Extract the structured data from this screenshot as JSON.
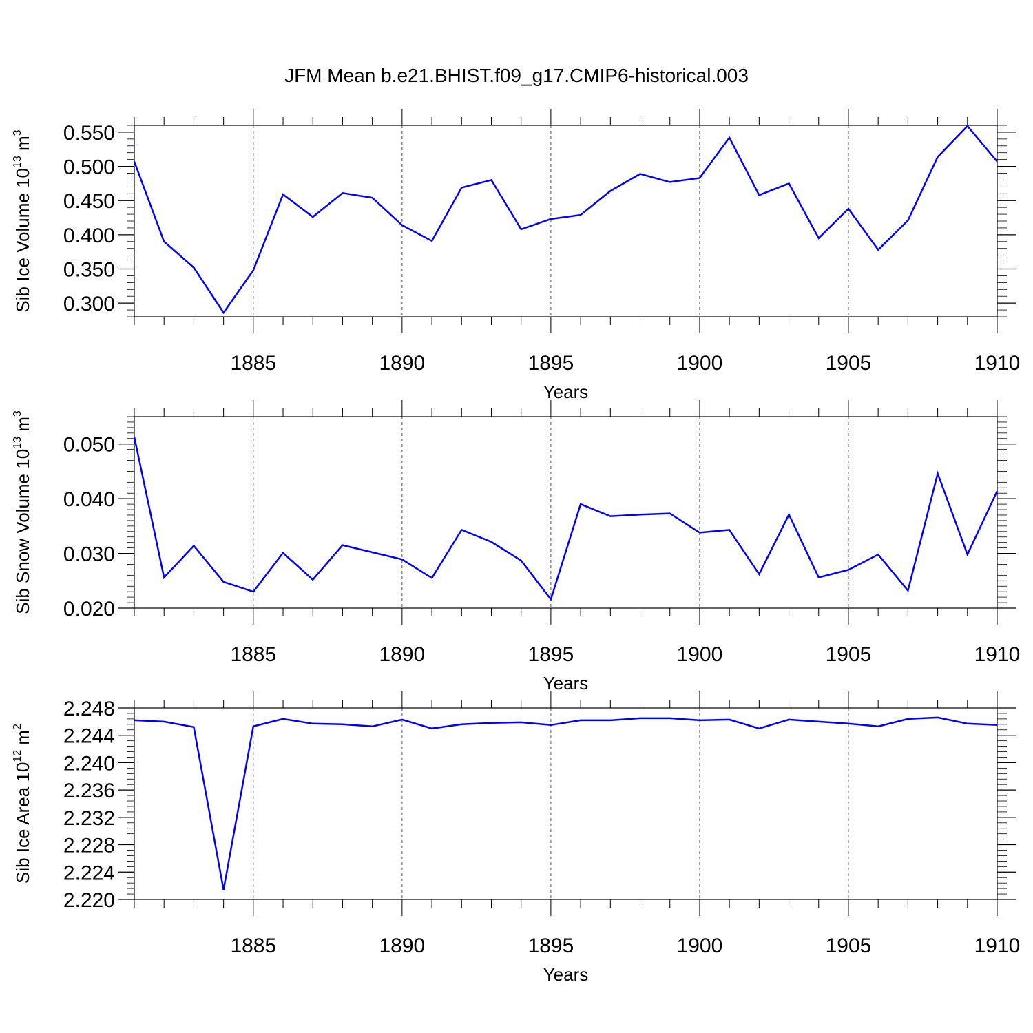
{
  "title": "JFM Mean b.e21.BHIST.f09_g17.CMIP6-historical.003",
  "line_color": "#0000ff",
  "x_ticks": [
    1885,
    1890,
    1895,
    1900,
    1905,
    1910
  ],
  "chart_data": [
    {
      "type": "line",
      "xlabel": "Years",
      "ylabel": "Sib Ice Volume 10",
      "ylabel_exp": "13",
      "ylabel_unit": " m",
      "ylabel_unit_exp": "3",
      "xlim": [
        1881,
        1910
      ],
      "ylim": [
        0.28,
        0.56
      ],
      "yticks": [
        "0.300",
        "0.350",
        "0.400",
        "0.450",
        "0.500",
        "0.550"
      ],
      "ytick_values": [
        0.3,
        0.35,
        0.4,
        0.45,
        0.5,
        0.55
      ],
      "y_minor_step": 0.01,
      "x": [
        1881,
        1882,
        1883,
        1884,
        1885,
        1886,
        1887,
        1888,
        1889,
        1890,
        1891,
        1892,
        1893,
        1894,
        1895,
        1896,
        1897,
        1898,
        1899,
        1900,
        1901,
        1902,
        1903,
        1904,
        1905,
        1906,
        1907,
        1908,
        1909,
        1910
      ],
      "series": [
        {
          "name": "Sib Ice Volume",
          "values": [
            0.507,
            0.39,
            0.352,
            0.286,
            0.348,
            0.459,
            0.426,
            0.461,
            0.454,
            0.414,
            0.391,
            0.469,
            0.48,
            0.408,
            0.423,
            0.429,
            0.464,
            0.489,
            0.477,
            0.483,
            0.542,
            0.458,
            0.475,
            0.395,
            0.438,
            0.378,
            0.421,
            0.514,
            0.559,
            0.507
          ]
        }
      ]
    },
    {
      "type": "line",
      "xlabel": "Years",
      "ylabel": "Sib Snow Volume 10",
      "ylabel_exp": "13",
      "ylabel_unit": " m",
      "ylabel_unit_exp": "3",
      "xlim": [
        1881,
        1910
      ],
      "ylim": [
        0.02,
        0.055
      ],
      "yticks": [
        "0.020",
        "0.030",
        "0.040",
        "0.050"
      ],
      "ytick_values": [
        0.02,
        0.03,
        0.04,
        0.05
      ],
      "y_minor_step": 0.001,
      "x": [
        1881,
        1882,
        1883,
        1884,
        1885,
        1886,
        1887,
        1888,
        1889,
        1890,
        1891,
        1892,
        1893,
        1894,
        1895,
        1896,
        1897,
        1898,
        1899,
        1900,
        1901,
        1902,
        1903,
        1904,
        1905,
        1906,
        1907,
        1908,
        1909,
        1910
      ],
      "series": [
        {
          "name": "Sib Snow Volume",
          "values": [
            0.0513,
            0.0256,
            0.0314,
            0.0248,
            0.023,
            0.0301,
            0.0252,
            0.0315,
            0.0302,
            0.0289,
            0.0255,
            0.0343,
            0.0321,
            0.0287,
            0.0216,
            0.039,
            0.0368,
            0.0371,
            0.0373,
            0.0338,
            0.0343,
            0.0262,
            0.0371,
            0.0256,
            0.027,
            0.0298,
            0.0232,
            0.0446,
            0.0298,
            0.0414
          ]
        }
      ]
    },
    {
      "type": "line",
      "xlabel": "Years",
      "ylabel": "Sib Ice Area 10",
      "ylabel_exp": "12",
      "ylabel_unit": " m",
      "ylabel_unit_exp": "2",
      "xlim": [
        1881,
        1910
      ],
      "ylim": [
        2.22,
        2.248
      ],
      "yticks": [
        "2.220",
        "2.224",
        "2.228",
        "2.232",
        "2.236",
        "2.240",
        "2.244",
        "2.248"
      ],
      "ytick_values": [
        2.22,
        2.224,
        2.228,
        2.232,
        2.236,
        2.24,
        2.244,
        2.248
      ],
      "y_minor_step": 0.0008,
      "x": [
        1881,
        1882,
        1883,
        1884,
        1885,
        1886,
        1887,
        1888,
        1889,
        1890,
        1891,
        1892,
        1893,
        1894,
        1895,
        1896,
        1897,
        1898,
        1899,
        1900,
        1901,
        1902,
        1903,
        1904,
        1905,
        1906,
        1907,
        1908,
        1909,
        1910
      ],
      "series": [
        {
          "name": "Sib Ice Area",
          "values": [
            2.2462,
            2.246,
            2.2452,
            2.2214,
            2.2453,
            2.2464,
            2.2457,
            2.2456,
            2.2453,
            2.2463,
            2.245,
            2.2456,
            2.2458,
            2.2459,
            2.2455,
            2.2462,
            2.2462,
            2.2465,
            2.2465,
            2.2462,
            2.2463,
            2.245,
            2.2463,
            2.246,
            2.2457,
            2.2453,
            2.2464,
            2.2466,
            2.2457,
            2.2455
          ]
        }
      ]
    }
  ]
}
